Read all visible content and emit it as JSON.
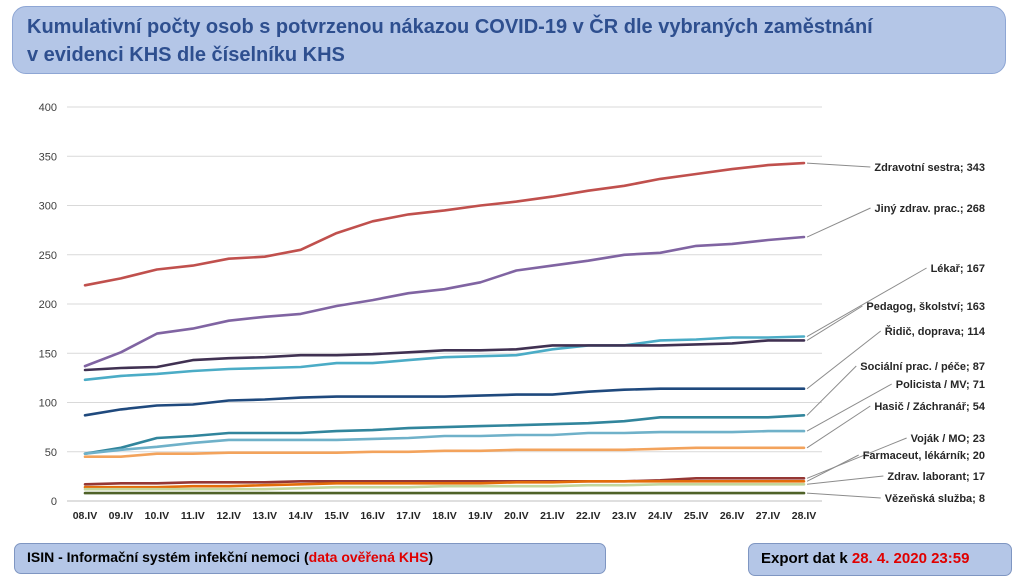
{
  "title": {
    "line1": "Kumulativní počty osob s potvrzenou nákazou COVID-19 v ČR dle vybraných zaměstnání",
    "line2": "v evidenci KHS dle číselníku KHS"
  },
  "footer": {
    "left_main": "ISIN - Informační systém infekční nemoci (",
    "left_highlight": "data ověřená KHS",
    "left_end": ")",
    "right_main": "Export dat k ",
    "right_highlight": "28. 4. 2020 23:59",
    "bg_color": "#b4c6e7",
    "highlight_color": "#e00000"
  },
  "chart_data": {
    "type": "line",
    "x": [
      "08.IV",
      "09.IV",
      "10.IV",
      "11.IV",
      "12.IV",
      "13.IV",
      "14.IV",
      "15.IV",
      "16.IV",
      "17.IV",
      "18.IV",
      "19.IV",
      "20.IV",
      "21.IV",
      "22.IV",
      "23.IV",
      "24.IV",
      "25.IV",
      "26.IV",
      "27.IV",
      "28.IV"
    ],
    "ylim": [
      0,
      400
    ],
    "yticks": [
      0,
      50,
      100,
      150,
      200,
      250,
      300,
      350,
      400
    ],
    "grid": true,
    "legend": "right, end-of-line labels",
    "series": [
      {
        "name": "Zdravotní sestra; 343",
        "color": "#c0504d",
        "values": [
          219,
          226,
          235,
          239,
          246,
          248,
          255,
          272,
          284,
          291,
          295,
          300,
          304,
          309,
          315,
          320,
          327,
          332,
          337,
          341,
          343
        ]
      },
      {
        "name": "Jiný zdrav. prac.; 268",
        "color": "#8064a2",
        "values": [
          137,
          151,
          170,
          175,
          183,
          187,
          190,
          198,
          204,
          211,
          215,
          222,
          234,
          239,
          244,
          250,
          252,
          259,
          261,
          265,
          268
        ]
      },
      {
        "name": "Lékař; 167",
        "color": "#4bacc6",
        "values": [
          123,
          127,
          129,
          132,
          134,
          135,
          136,
          140,
          140,
          143,
          146,
          147,
          148,
          154,
          158,
          158,
          163,
          164,
          166,
          166,
          167
        ]
      },
      {
        "name": "Pedagog, školství; 163",
        "color": "#403152",
        "values": [
          133,
          135,
          136,
          143,
          145,
          146,
          148,
          148,
          149,
          151,
          153,
          153,
          154,
          158,
          158,
          158,
          158,
          159,
          160,
          163,
          163
        ]
      },
      {
        "name": "Řidič, doprava; 114",
        "color": "#1f497d",
        "values": [
          87,
          93,
          97,
          98,
          102,
          103,
          105,
          106,
          106,
          106,
          106,
          107,
          108,
          108,
          111,
          113,
          114,
          114,
          114,
          114,
          114
        ]
      },
      {
        "name": "Sociální prac. / péče; 87",
        "color": "#31859c",
        "values": [
          48,
          54,
          64,
          66,
          69,
          69,
          69,
          71,
          72,
          74,
          75,
          76,
          77,
          78,
          79,
          81,
          85,
          85,
          85,
          85,
          87
        ]
      },
      {
        "name": "Policista / MV; 71",
        "color": "#6fb1c9",
        "values": [
          48,
          52,
          55,
          59,
          62,
          62,
          62,
          62,
          63,
          64,
          66,
          66,
          67,
          67,
          69,
          69,
          70,
          70,
          70,
          71,
          71
        ]
      },
      {
        "name": "Hasič / Záchranář; 54",
        "color": "#f3a35c",
        "values": [
          45,
          45,
          48,
          48,
          49,
          49,
          49,
          49,
          50,
          50,
          51,
          51,
          52,
          52,
          52,
          52,
          53,
          54,
          54,
          54,
          54
        ]
      },
      {
        "name": "Voják / MO; 23",
        "color": "#953734",
        "values": [
          17,
          18,
          18,
          19,
          19,
          19,
          20,
          20,
          20,
          20,
          20,
          20,
          20,
          20,
          20,
          20,
          21,
          23,
          23,
          23,
          23
        ]
      },
      {
        "name": "Farmaceut, lékárník; 20",
        "color": "#e36c09",
        "values": [
          14,
          14,
          14,
          15,
          15,
          16,
          17,
          18,
          18,
          18,
          18,
          18,
          19,
          19,
          20,
          20,
          20,
          20,
          20,
          20,
          20
        ]
      },
      {
        "name": "Zdrav. laborant; 17",
        "color": "#c3d69b",
        "values": [
          12,
          12,
          12,
          12,
          12,
          12,
          13,
          14,
          14,
          14,
          15,
          15,
          15,
          15,
          16,
          16,
          17,
          17,
          17,
          17,
          17
        ]
      },
      {
        "name": "Vězeňská služba; 8",
        "color": "#4f6228",
        "values": [
          8,
          8,
          8,
          8,
          8,
          8,
          8,
          8,
          8,
          8,
          8,
          8,
          8,
          8,
          8,
          8,
          8,
          8,
          8,
          8,
          8
        ]
      }
    ]
  }
}
